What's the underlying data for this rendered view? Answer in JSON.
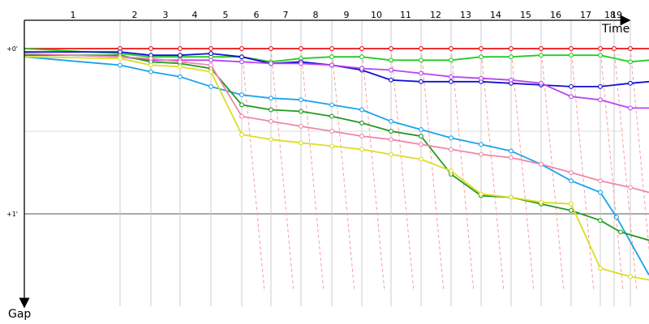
{
  "chart_data": {
    "type": "line",
    "xlabel": "Time",
    "ylabel": "Gap",
    "x_labels": [
      "1",
      "2",
      "3",
      "4",
      "5",
      "6",
      "7",
      "8",
      "9",
      "10",
      "11",
      "12",
      "13",
      "14",
      "15",
      "16",
      "17",
      "18",
      "19"
    ],
    "y_ticks": [
      {
        "label": "+0'",
        "value": 0
      },
      {
        "label": "+1'",
        "value": 1
      }
    ],
    "lap_lines_x": [
      148,
      186,
      222,
      260,
      298,
      334,
      371,
      409,
      446,
      482,
      519,
      556,
      593,
      630,
      667,
      704,
      740,
      757,
      777
    ],
    "series": [
      {
        "color": "#ee1111",
        "points": [
          [
            30,
            0.0
          ],
          [
            148,
            0.0
          ],
          [
            186,
            0.0
          ],
          [
            222,
            0.0
          ],
          [
            260,
            0.0
          ],
          [
            298,
            0.0
          ],
          [
            334,
            0.0
          ],
          [
            371,
            0.0
          ],
          [
            409,
            0.0
          ],
          [
            446,
            0.0
          ],
          [
            482,
            0.0
          ],
          [
            519,
            0.0
          ],
          [
            556,
            0.0
          ],
          [
            593,
            0.0
          ],
          [
            630,
            0.0
          ],
          [
            667,
            0.0
          ],
          [
            704,
            0.0
          ],
          [
            740,
            0.0
          ],
          [
            757,
            0.0
          ],
          [
            777,
            0.0
          ],
          [
            800,
            0.0
          ]
        ]
      },
      {
        "color": "#22cc22",
        "points": [
          [
            30,
            0.0
          ],
          [
            148,
            0.03
          ],
          [
            186,
            0.05
          ],
          [
            222,
            0.05
          ],
          [
            260,
            0.05
          ],
          [
            298,
            0.05
          ],
          [
            334,
            0.08
          ],
          [
            371,
            0.06
          ],
          [
            409,
            0.05
          ],
          [
            446,
            0.05
          ],
          [
            482,
            0.07
          ],
          [
            519,
            0.07
          ],
          [
            556,
            0.07
          ],
          [
            593,
            0.05
          ],
          [
            630,
            0.05
          ],
          [
            667,
            0.04
          ],
          [
            704,
            0.04
          ],
          [
            740,
            0.04
          ],
          [
            777,
            0.08
          ],
          [
            800,
            0.07
          ]
        ]
      },
      {
        "color": "#1111cc",
        "points": [
          [
            30,
            0.02
          ],
          [
            148,
            0.02
          ],
          [
            186,
            0.04
          ],
          [
            222,
            0.04
          ],
          [
            260,
            0.03
          ],
          [
            298,
            0.05
          ],
          [
            334,
            0.09
          ],
          [
            371,
            0.08
          ],
          [
            409,
            0.1
          ],
          [
            446,
            0.13
          ],
          [
            482,
            0.19
          ],
          [
            519,
            0.2
          ],
          [
            556,
            0.2
          ],
          [
            593,
            0.2
          ],
          [
            630,
            0.21
          ],
          [
            667,
            0.22
          ],
          [
            704,
            0.23
          ],
          [
            740,
            0.23
          ],
          [
            777,
            0.21
          ],
          [
            800,
            0.2
          ]
        ]
      },
      {
        "color": "#bb44ee",
        "points": [
          [
            30,
            0.03
          ],
          [
            148,
            0.05
          ],
          [
            186,
            0.07
          ],
          [
            222,
            0.07
          ],
          [
            260,
            0.07
          ],
          [
            298,
            0.08
          ],
          [
            334,
            0.09
          ],
          [
            371,
            0.09
          ],
          [
            409,
            0.1
          ],
          [
            446,
            0.12
          ],
          [
            482,
            0.13
          ],
          [
            519,
            0.15
          ],
          [
            556,
            0.17
          ],
          [
            593,
            0.18
          ],
          [
            630,
            0.19
          ],
          [
            667,
            0.21
          ],
          [
            704,
            0.29
          ],
          [
            740,
            0.31
          ],
          [
            777,
            0.36
          ],
          [
            800,
            0.36
          ]
        ]
      },
      {
        "color": "#1aa3ee",
        "points": [
          [
            30,
            0.05
          ],
          [
            148,
            0.1
          ],
          [
            186,
            0.14
          ],
          [
            222,
            0.17
          ],
          [
            260,
            0.23
          ],
          [
            298,
            0.28
          ],
          [
            334,
            0.3
          ],
          [
            371,
            0.31
          ],
          [
            409,
            0.34
          ],
          [
            446,
            0.37
          ],
          [
            482,
            0.44
          ],
          [
            519,
            0.49
          ],
          [
            556,
            0.54
          ],
          [
            593,
            0.58
          ],
          [
            630,
            0.62
          ],
          [
            667,
            0.7
          ],
          [
            704,
            0.8
          ],
          [
            740,
            0.87
          ],
          [
            760,
            1.02
          ],
          [
            800,
            1.37
          ]
        ]
      },
      {
        "color": "#229922",
        "points": [
          [
            30,
            0.04
          ],
          [
            148,
            0.04
          ],
          [
            186,
            0.08
          ],
          [
            222,
            0.09
          ],
          [
            260,
            0.12
          ],
          [
            298,
            0.34
          ],
          [
            334,
            0.37
          ],
          [
            371,
            0.38
          ],
          [
            409,
            0.41
          ],
          [
            446,
            0.45
          ],
          [
            482,
            0.5
          ],
          [
            519,
            0.53
          ],
          [
            556,
            0.76
          ],
          [
            593,
            0.89
          ],
          [
            630,
            0.9
          ],
          [
            667,
            0.94
          ],
          [
            704,
            0.98
          ],
          [
            740,
            1.04
          ],
          [
            765,
            1.11
          ],
          [
            800,
            1.16
          ]
        ]
      },
      {
        "color": "#ee88aa",
        "points": [
          [
            30,
            0.03
          ],
          [
            148,
            0.05
          ],
          [
            186,
            0.06
          ],
          [
            222,
            0.08
          ],
          [
            260,
            0.1
          ],
          [
            298,
            0.41
          ],
          [
            334,
            0.44
          ],
          [
            371,
            0.47
          ],
          [
            409,
            0.5
          ],
          [
            446,
            0.53
          ],
          [
            482,
            0.55
          ],
          [
            519,
            0.58
          ],
          [
            556,
            0.61
          ],
          [
            593,
            0.64
          ],
          [
            630,
            0.66
          ],
          [
            667,
            0.7
          ],
          [
            704,
            0.75
          ],
          [
            740,
            0.8
          ],
          [
            777,
            0.84
          ],
          [
            800,
            0.87
          ]
        ]
      },
      {
        "color": "#dddd22",
        "points": [
          [
            30,
            0.05
          ],
          [
            148,
            0.06
          ],
          [
            186,
            0.1
          ],
          [
            222,
            0.11
          ],
          [
            260,
            0.14
          ],
          [
            298,
            0.52
          ],
          [
            334,
            0.55
          ],
          [
            371,
            0.57
          ],
          [
            409,
            0.59
          ],
          [
            446,
            0.61
          ],
          [
            482,
            0.64
          ],
          [
            519,
            0.67
          ],
          [
            556,
            0.74
          ],
          [
            593,
            0.88
          ],
          [
            630,
            0.9
          ],
          [
            667,
            0.93
          ],
          [
            704,
            0.94
          ],
          [
            740,
            1.33
          ],
          [
            777,
            1.38
          ],
          [
            800,
            1.4
          ]
        ]
      }
    ]
  }
}
